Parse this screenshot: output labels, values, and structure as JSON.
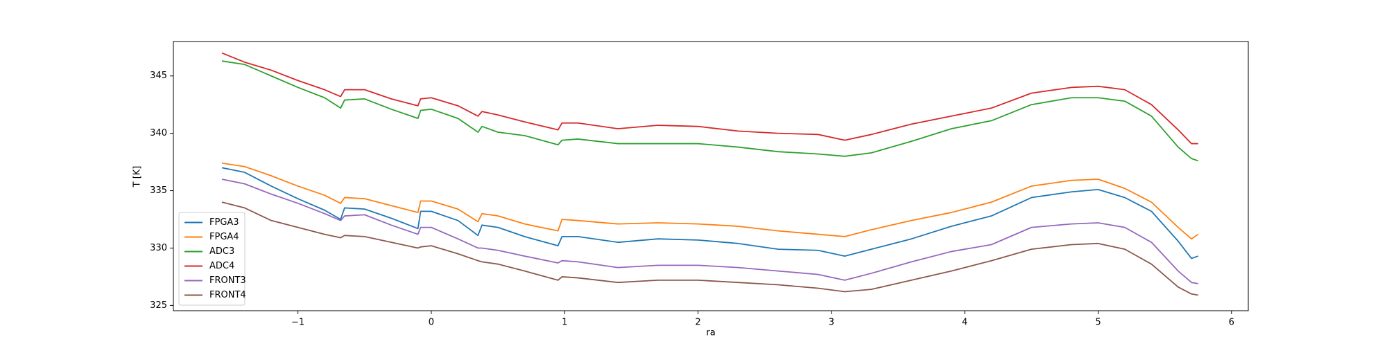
{
  "chart_data": {
    "type": "line",
    "x_label": "ra",
    "y_label": "T [K]",
    "x": [
      -1.57,
      -1.4,
      -1.2,
      -1.0,
      -0.8,
      -0.68,
      -0.65,
      -0.5,
      -0.3,
      -0.1,
      -0.08,
      0.0,
      0.2,
      0.35,
      0.38,
      0.5,
      0.7,
      0.95,
      0.98,
      1.1,
      1.4,
      1.7,
      2.0,
      2.3,
      2.6,
      2.9,
      3.1,
      3.3,
      3.6,
      3.9,
      4.2,
      4.5,
      4.8,
      5.0,
      5.2,
      5.4,
      5.6,
      5.7,
      5.75
    ],
    "series": [
      {
        "name": "FPGA3",
        "color": "#1f77b4",
        "values": [
          337.0,
          336.6,
          335.4,
          334.3,
          333.3,
          332.5,
          333.5,
          333.4,
          332.6,
          331.7,
          333.2,
          333.2,
          332.4,
          331.1,
          332.0,
          331.8,
          331.0,
          330.2,
          331.0,
          331.0,
          330.5,
          330.8,
          330.7,
          330.4,
          329.9,
          329.8,
          329.3,
          329.9,
          330.8,
          331.9,
          332.8,
          334.4,
          334.9,
          335.1,
          334.4,
          333.2,
          330.6,
          329.1,
          329.3
        ]
      },
      {
        "name": "FPGA4",
        "color": "#ff7f0e",
        "values": [
          337.4,
          337.1,
          336.3,
          335.4,
          334.6,
          333.9,
          334.4,
          334.3,
          333.7,
          333.1,
          334.1,
          334.1,
          333.4,
          332.3,
          333.0,
          332.8,
          332.1,
          331.5,
          332.5,
          332.4,
          332.1,
          332.2,
          332.1,
          331.9,
          331.5,
          331.2,
          331.0,
          331.6,
          332.4,
          333.1,
          334.0,
          335.4,
          335.9,
          336.0,
          335.2,
          334.0,
          331.8,
          330.8,
          331.2
        ]
      },
      {
        "name": "ADC3",
        "color": "#2ca02c",
        "values": [
          346.3,
          346.0,
          345.0,
          344.0,
          343.1,
          342.2,
          342.9,
          343.0,
          342.1,
          341.3,
          342.0,
          342.1,
          341.3,
          340.1,
          340.6,
          340.1,
          339.8,
          339.0,
          339.4,
          339.5,
          339.1,
          339.1,
          339.1,
          338.8,
          338.4,
          338.2,
          338.0,
          338.3,
          339.3,
          340.4,
          341.1,
          342.5,
          343.1,
          343.1,
          342.8,
          341.5,
          338.8,
          337.8,
          337.6
        ]
      },
      {
        "name": "ADC4",
        "color": "#d62728",
        "values": [
          347.0,
          346.2,
          345.5,
          344.6,
          343.8,
          343.2,
          343.8,
          343.8,
          343.0,
          342.4,
          343.0,
          343.1,
          342.4,
          341.5,
          341.9,
          341.6,
          341.0,
          340.3,
          340.9,
          340.9,
          340.4,
          340.7,
          340.6,
          340.2,
          340.0,
          339.9,
          339.4,
          339.9,
          340.8,
          341.5,
          342.2,
          343.5,
          344.0,
          344.1,
          343.8,
          342.5,
          340.3,
          339.1,
          339.1
        ]
      },
      {
        "name": "FRONT3",
        "color": "#9467bd",
        "values": [
          336.0,
          335.6,
          334.7,
          333.9,
          333.0,
          332.4,
          332.8,
          332.9,
          332.0,
          331.2,
          331.8,
          331.8,
          330.8,
          330.0,
          330.0,
          329.8,
          329.3,
          328.7,
          328.9,
          328.8,
          328.3,
          328.5,
          328.5,
          328.3,
          328.0,
          327.7,
          327.2,
          327.8,
          328.8,
          329.7,
          330.3,
          331.8,
          332.1,
          332.2,
          331.8,
          330.5,
          328.0,
          327.0,
          326.9
        ]
      },
      {
        "name": "FRONT4",
        "color": "#8c564b",
        "values": [
          334.0,
          333.5,
          332.4,
          331.8,
          331.2,
          330.9,
          331.1,
          331.0,
          330.5,
          330.0,
          330.1,
          330.2,
          329.5,
          328.9,
          328.8,
          328.6,
          328.0,
          327.2,
          327.5,
          327.4,
          327.0,
          327.2,
          327.2,
          327.0,
          326.8,
          326.5,
          326.2,
          326.4,
          327.2,
          328.0,
          328.9,
          329.9,
          330.3,
          330.4,
          329.9,
          328.6,
          326.6,
          326.0,
          325.9
        ]
      }
    ],
    "xlim": [
      -1.934,
      6.126
    ],
    "xticks": [
      {
        "value": -1,
        "label": "−1"
      },
      0,
      1,
      2,
      3,
      4,
      5,
      6
    ],
    "ylim": [
      324.54,
      348.0
    ],
    "yticks": [
      325,
      330,
      335,
      340,
      345
    ],
    "grid": false,
    "legend": "lower left"
  }
}
